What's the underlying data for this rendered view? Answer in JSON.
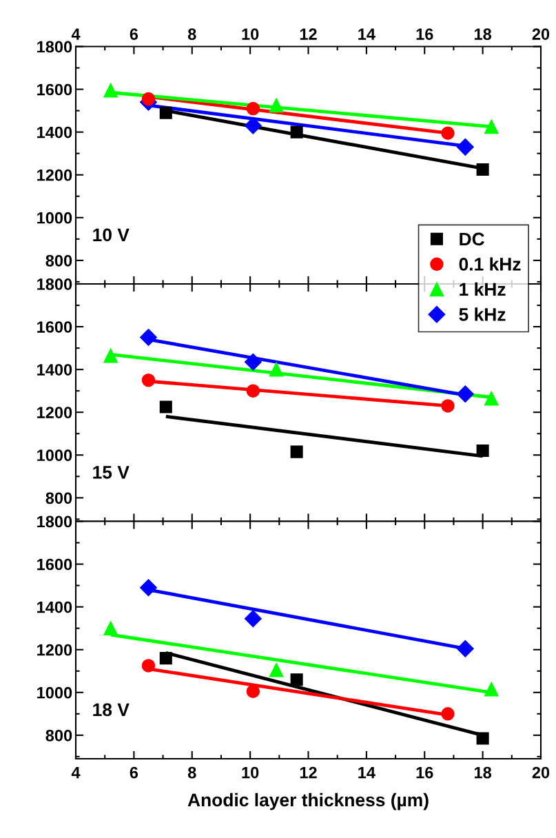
{
  "chart_data": [
    {
      "type": "scatter",
      "annotations": [
        "10 V"
      ],
      "x2lim": [
        4,
        20
      ],
      "x2ticks": [
        4,
        6,
        8,
        10,
        12,
        14,
        16,
        18,
        20
      ],
      "xlim": [
        4,
        20
      ],
      "ylim": [
        690,
        1800
      ],
      "yticks": [
        800,
        1000,
        1200,
        1400,
        1600,
        1800
      ],
      "tick_labels": "y",
      "legend": "bottom right",
      "series": [
        {
          "name": "DC",
          "color": "#000000",
          "marker": "square",
          "x": [
            7.1,
            11.6,
            18
          ],
          "values": [
            1490,
            1400,
            1225
          ]
        },
        {
          "name": "0.1 kHz",
          "color": "#ff0000",
          "marker": "circle",
          "x": [
            6.5,
            10.1,
            16.8
          ],
          "values": [
            1555,
            1510,
            1395
          ]
        },
        {
          "name": "1 kHz",
          "color": "#00ff00",
          "marker": "triangle",
          "x": [
            5.2,
            10.9,
            18.3
          ],
          "values": [
            1595,
            1525,
            1425
          ]
        },
        {
          "name": "5 kHz",
          "color": "#0000ff",
          "marker": "diamond",
          "x": [
            6.5,
            10.1,
            17.4
          ],
          "values": [
            1540,
            1430,
            1330
          ]
        },
        {
          "type": "line",
          "color": "#000000",
          "x": [
            7.1,
            18
          ],
          "values": [
            1500,
            1230
          ]
        },
        {
          "type": "line",
          "color": "#ff0000",
          "x": [
            6.5,
            16.8
          ],
          "values": [
            1565,
            1395
          ]
        },
        {
          "type": "line",
          "color": "#00ff00",
          "x": [
            5.2,
            18.3
          ],
          "values": [
            1585,
            1425
          ]
        },
        {
          "type": "line",
          "color": "#0000ff",
          "x": [
            6.5,
            17.4
          ],
          "values": [
            1525,
            1335
          ]
        }
      ]
    },
    {
      "type": "scatter",
      "annotations": [
        "15 V"
      ],
      "xlim": [
        4,
        20
      ],
      "ylim": [
        690,
        1800
      ],
      "yticks": [
        800,
        1000,
        1200,
        1400,
        1600,
        1800
      ],
      "tick_labels": "y",
      "series": [
        {
          "color": "#000000",
          "marker": "square",
          "x": [
            7.1,
            11.6,
            18
          ],
          "values": [
            1225,
            1015,
            1020
          ]
        },
        {
          "color": "#ff0000",
          "marker": "circle",
          "x": [
            6.5,
            10.1,
            16.8
          ],
          "values": [
            1350,
            1300,
            1230
          ]
        },
        {
          "color": "#00ff00",
          "marker": "triangle",
          "x": [
            5.2,
            10.9,
            18.3
          ],
          "values": [
            1465,
            1400,
            1265
          ]
        },
        {
          "color": "#0000ff",
          "marker": "diamond",
          "x": [
            6.5,
            10.1,
            17.4
          ],
          "values": [
            1550,
            1435,
            1285
          ]
        },
        {
          "type": "line",
          "color": "#000000",
          "x": [
            7.1,
            18
          ],
          "values": [
            1180,
            995
          ]
        },
        {
          "type": "line",
          "color": "#ff0000",
          "x": [
            6.5,
            16.8
          ],
          "values": [
            1345,
            1230
          ]
        },
        {
          "type": "line",
          "color": "#00ff00",
          "x": [
            5.2,
            18.3
          ],
          "values": [
            1470,
            1270
          ]
        },
        {
          "type": "line",
          "color": "#0000ff",
          "x": [
            6.5,
            17.4
          ],
          "values": [
            1540,
            1280
          ]
        }
      ]
    },
    {
      "type": "scatter",
      "annotations": [
        "18 V"
      ],
      "xlabel": "Anodic layer thickness (µm)",
      "xlim": [
        4,
        20
      ],
      "xticks": [
        4,
        6,
        8,
        10,
        12,
        14,
        16,
        18,
        20
      ],
      "ylim": [
        690,
        1800
      ],
      "yticks": [
        800,
        1000,
        1200,
        1400,
        1600,
        1800
      ],
      "series": [
        {
          "color": "#000000",
          "marker": "square",
          "x": [
            7.1,
            11.6,
            18
          ],
          "values": [
            1160,
            1060,
            785
          ]
        },
        {
          "color": "#ff0000",
          "marker": "circle",
          "x": [
            6.5,
            10.1,
            16.8
          ],
          "values": [
            1125,
            1005,
            900
          ]
        },
        {
          "color": "#00ff00",
          "marker": "triangle",
          "x": [
            5.2,
            10.9,
            18.3
          ],
          "values": [
            1300,
            1105,
            1015
          ]
        },
        {
          "color": "#0000ff",
          "marker": "diamond",
          "x": [
            6.5,
            10.1,
            17.4
          ],
          "values": [
            1490,
            1345,
            1205
          ]
        },
        {
          "type": "line",
          "color": "#000000",
          "x": [
            7.1,
            18
          ],
          "values": [
            1185,
            800
          ]
        },
        {
          "type": "line",
          "color": "#ff0000",
          "x": [
            6.5,
            16.8
          ],
          "values": [
            1110,
            895
          ]
        },
        {
          "type": "line",
          "color": "#00ff00",
          "x": [
            5.2,
            18.3
          ],
          "values": [
            1270,
            1000
          ]
        },
        {
          "type": "line",
          "color": "#0000ff",
          "x": [
            6.5,
            17.4
          ],
          "values": [
            1480,
            1205
          ]
        }
      ]
    }
  ]
}
